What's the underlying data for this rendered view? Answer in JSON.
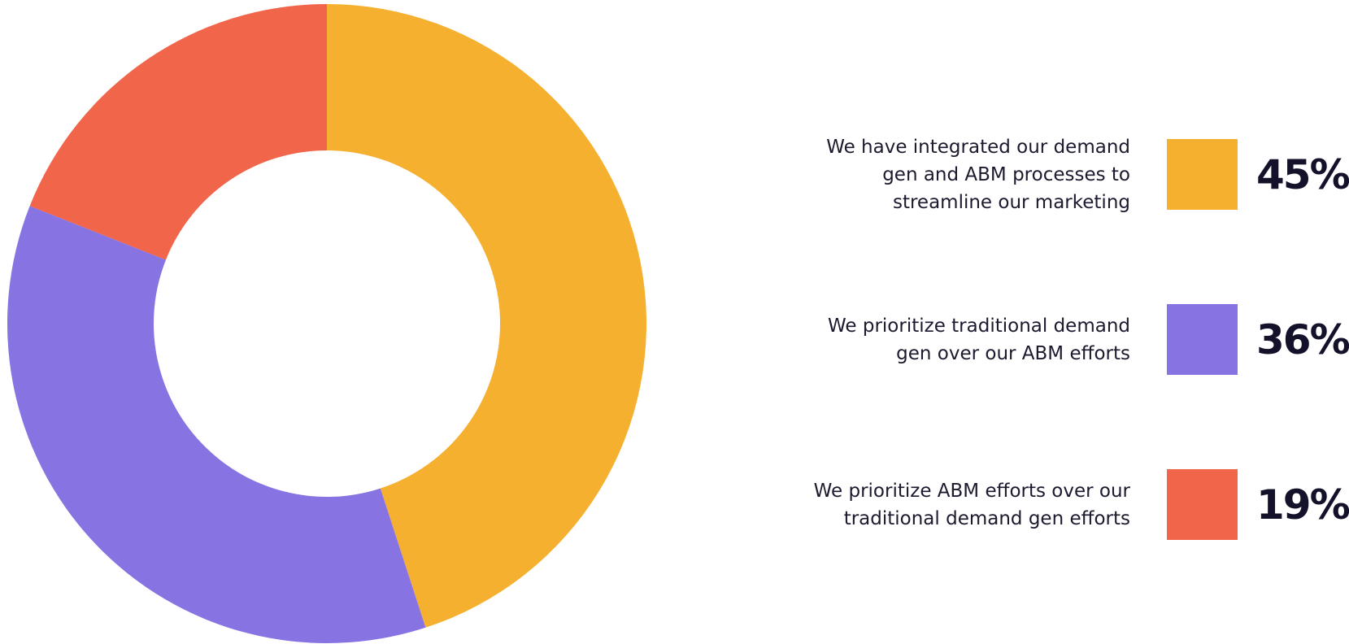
{
  "chart_data": {
    "type": "donut",
    "categories": [
      "We have integrated our demand gen and ABM processes to streamline our marketing",
      "We prioritize traditional demand gen over our ABM efforts",
      "We prioritize ABM efforts over our traditional demand gen efforts"
    ],
    "values": [
      45,
      36,
      19
    ],
    "value_labels": [
      "45%",
      "36%",
      "19%"
    ],
    "colors": [
      "#f5b030",
      "#8873e2",
      "#f1654b"
    ]
  }
}
